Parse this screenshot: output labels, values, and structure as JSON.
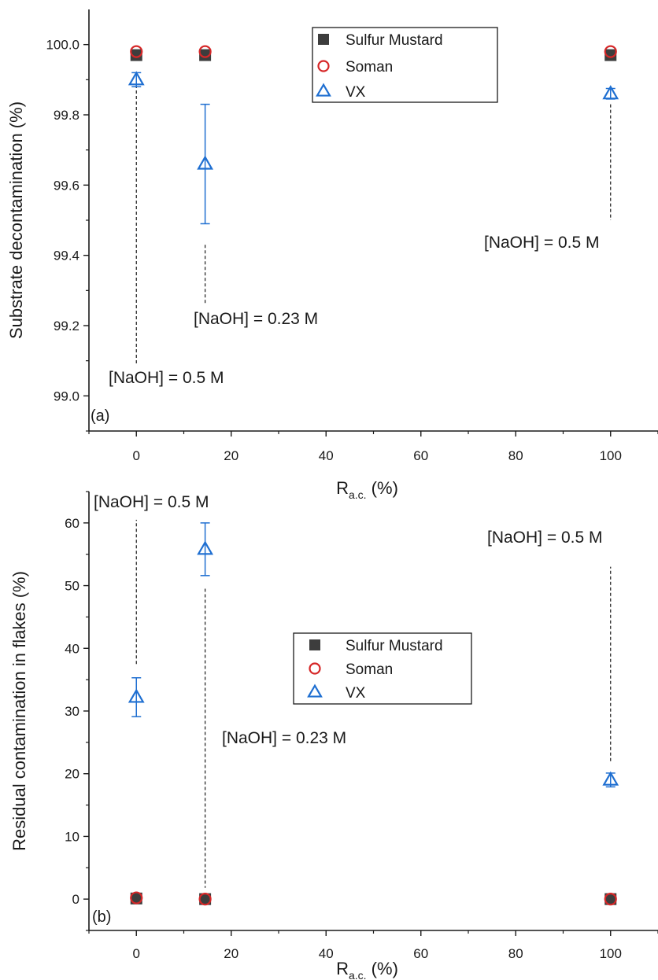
{
  "chart_data": [
    {
      "type": "scatter",
      "panel_label": "(a)",
      "xlabel_main": "R",
      "xlabel_sub": "a.c.",
      "xlabel_unit": " (%)",
      "ylabel": "Substrate decontamination (%)",
      "xlim": [
        -10,
        110
      ],
      "ylim": [
        98.9,
        100.1
      ],
      "xticks": [
        0,
        20,
        40,
        60,
        80,
        100
      ],
      "xtick_labels": [
        "0",
        "20",
        "40",
        "60",
        "80",
        "100"
      ],
      "yticks": [
        99.0,
        99.2,
        99.4,
        99.6,
        99.8,
        100.0
      ],
      "ytick_labels": [
        "99.0",
        "99.2",
        "99.4",
        "99.6",
        "99.8",
        "100.0"
      ],
      "legend_position": "top-center",
      "series": [
        {
          "name": "Sulfur Mustard",
          "marker": "square",
          "color": "#3d3d3d",
          "x": [
            0,
            14.5,
            100
          ],
          "y": [
            99.97,
            99.97,
            99.97
          ]
        },
        {
          "name": "Soman",
          "marker": "circle-open",
          "color": "#d62728",
          "x": [
            0,
            14.5,
            100
          ],
          "y": [
            99.98,
            99.98,
            99.98
          ]
        },
        {
          "name": "VX",
          "marker": "triangle-open",
          "color": "#1f6fd1",
          "x": [
            0,
            14.5,
            100
          ],
          "y": [
            99.9,
            99.66,
            99.86
          ],
          "err": [
            0.02,
            0.17,
            0.015
          ]
        }
      ],
      "annotations": [
        {
          "text": "[NaOH] = 0.5 M",
          "x": 0,
          "y": 99.06,
          "line_from": 99.885,
          "line_to": 99.09
        },
        {
          "text": "[NaOH] = 0.23 M",
          "x": 14.5,
          "y": 99.29,
          "line_from": 99.43,
          "line_to": 99.26
        },
        {
          "text": "[NaOH] = 0.5 M",
          "x": 100,
          "y": 99.47,
          "line_from": 99.83,
          "line_to": 99.5
        }
      ]
    },
    {
      "type": "scatter",
      "panel_label": "(b)",
      "xlabel_main": "R",
      "xlabel_sub": "a.c.",
      "xlabel_unit": " (%)",
      "ylabel": "Residual contamination in flakes (%)",
      "xlim": [
        -10,
        110
      ],
      "ylim": [
        -5,
        65
      ],
      "xticks": [
        0,
        20,
        40,
        60,
        80,
        100
      ],
      "xtick_labels": [
        "0",
        "20",
        "40",
        "60",
        "80",
        "100"
      ],
      "yticks": [
        0,
        10,
        20,
        30,
        40,
        50,
        60
      ],
      "ytick_labels": [
        "0",
        "10",
        "20",
        "30",
        "40",
        "50",
        "60"
      ],
      "legend_position": "center",
      "series": [
        {
          "name": "Sulfur Mustard",
          "marker": "square",
          "color": "#3d3d3d",
          "x": [
            0,
            14.5,
            100
          ],
          "y": [
            0.1,
            0.0,
            0.0
          ]
        },
        {
          "name": "Soman",
          "marker": "circle-open",
          "color": "#d62728",
          "x": [
            0,
            14.5,
            100
          ],
          "y": [
            0.2,
            0.0,
            0.0
          ]
        },
        {
          "name": "VX",
          "marker": "triangle-open",
          "color": "#1f6fd1",
          "x": [
            0,
            14.5,
            100
          ],
          "y": [
            32.2,
            55.8,
            19.0
          ],
          "err": [
            3.1,
            4.2,
            1.1
          ]
        }
      ],
      "annotations": [
        {
          "text": "[NaOH] = 0.5 M",
          "x": 0,
          "y": 63,
          "line_from": 37.5,
          "line_to": 60.5
        },
        {
          "text": "[NaOH] = 0.23 M",
          "x": 14.5,
          "y": 14.5,
          "line_from": 49.5,
          "line_to": 1.8
        },
        {
          "text": "[NaOH] = 0.5 M",
          "x": 100,
          "y": 57.5,
          "line_from": 22,
          "line_to": 53
        }
      ]
    }
  ]
}
